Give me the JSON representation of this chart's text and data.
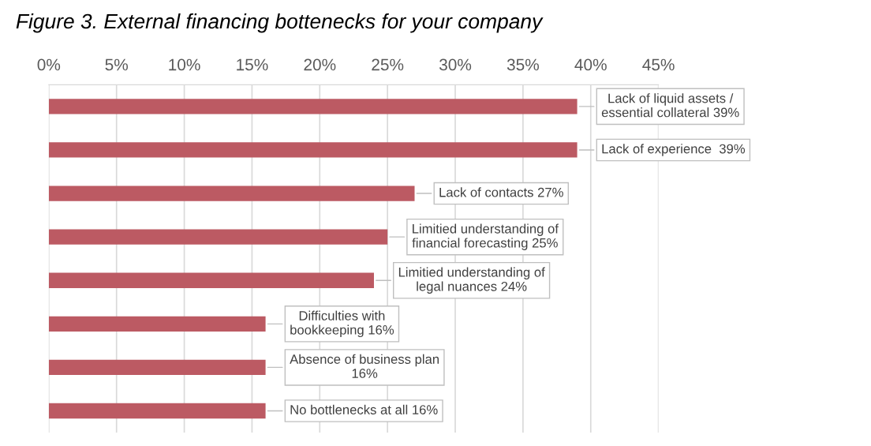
{
  "chart_data": {
    "type": "bar",
    "orientation": "horizontal",
    "title": "Figure 3. External financing bottenecks for your company",
    "categories": [
      null,
      null,
      null,
      null,
      null,
      null,
      null,
      null
    ],
    "values": [
      39,
      39,
      27,
      25,
      24,
      16,
      16,
      16
    ],
    "value_labels": [
      "Lack of liquid assets /\nessential collateral 39%",
      "Lack of experience  39%",
      "Lack of contacts 27%",
      "Limitied understanding of\nfinancial forecasting 25%",
      "Limitied understanding of\nlegal nuances 24%",
      "Difficulties with\nbookkeeping 16%",
      "Absence of business plan\n16%",
      "No bottlenecks at all 16%"
    ],
    "color": "#bc5a63",
    "xlim": [
      0,
      45
    ],
    "xticks": [
      {
        "value": 0,
        "label": "0%"
      },
      {
        "value": 5,
        "label": "5%"
      },
      {
        "value": 10,
        "label": "10%"
      },
      {
        "value": 15,
        "label": "15%"
      },
      {
        "value": 20,
        "label": "20%"
      },
      {
        "value": 25,
        "label": "25%"
      },
      {
        "value": 30,
        "label": "30%"
      },
      {
        "value": 35,
        "label": "35%"
      },
      {
        "value": 40,
        "label": "40%"
      },
      {
        "value": 45,
        "label": "45%"
      }
    ],
    "grid": "x",
    "legend": false
  }
}
